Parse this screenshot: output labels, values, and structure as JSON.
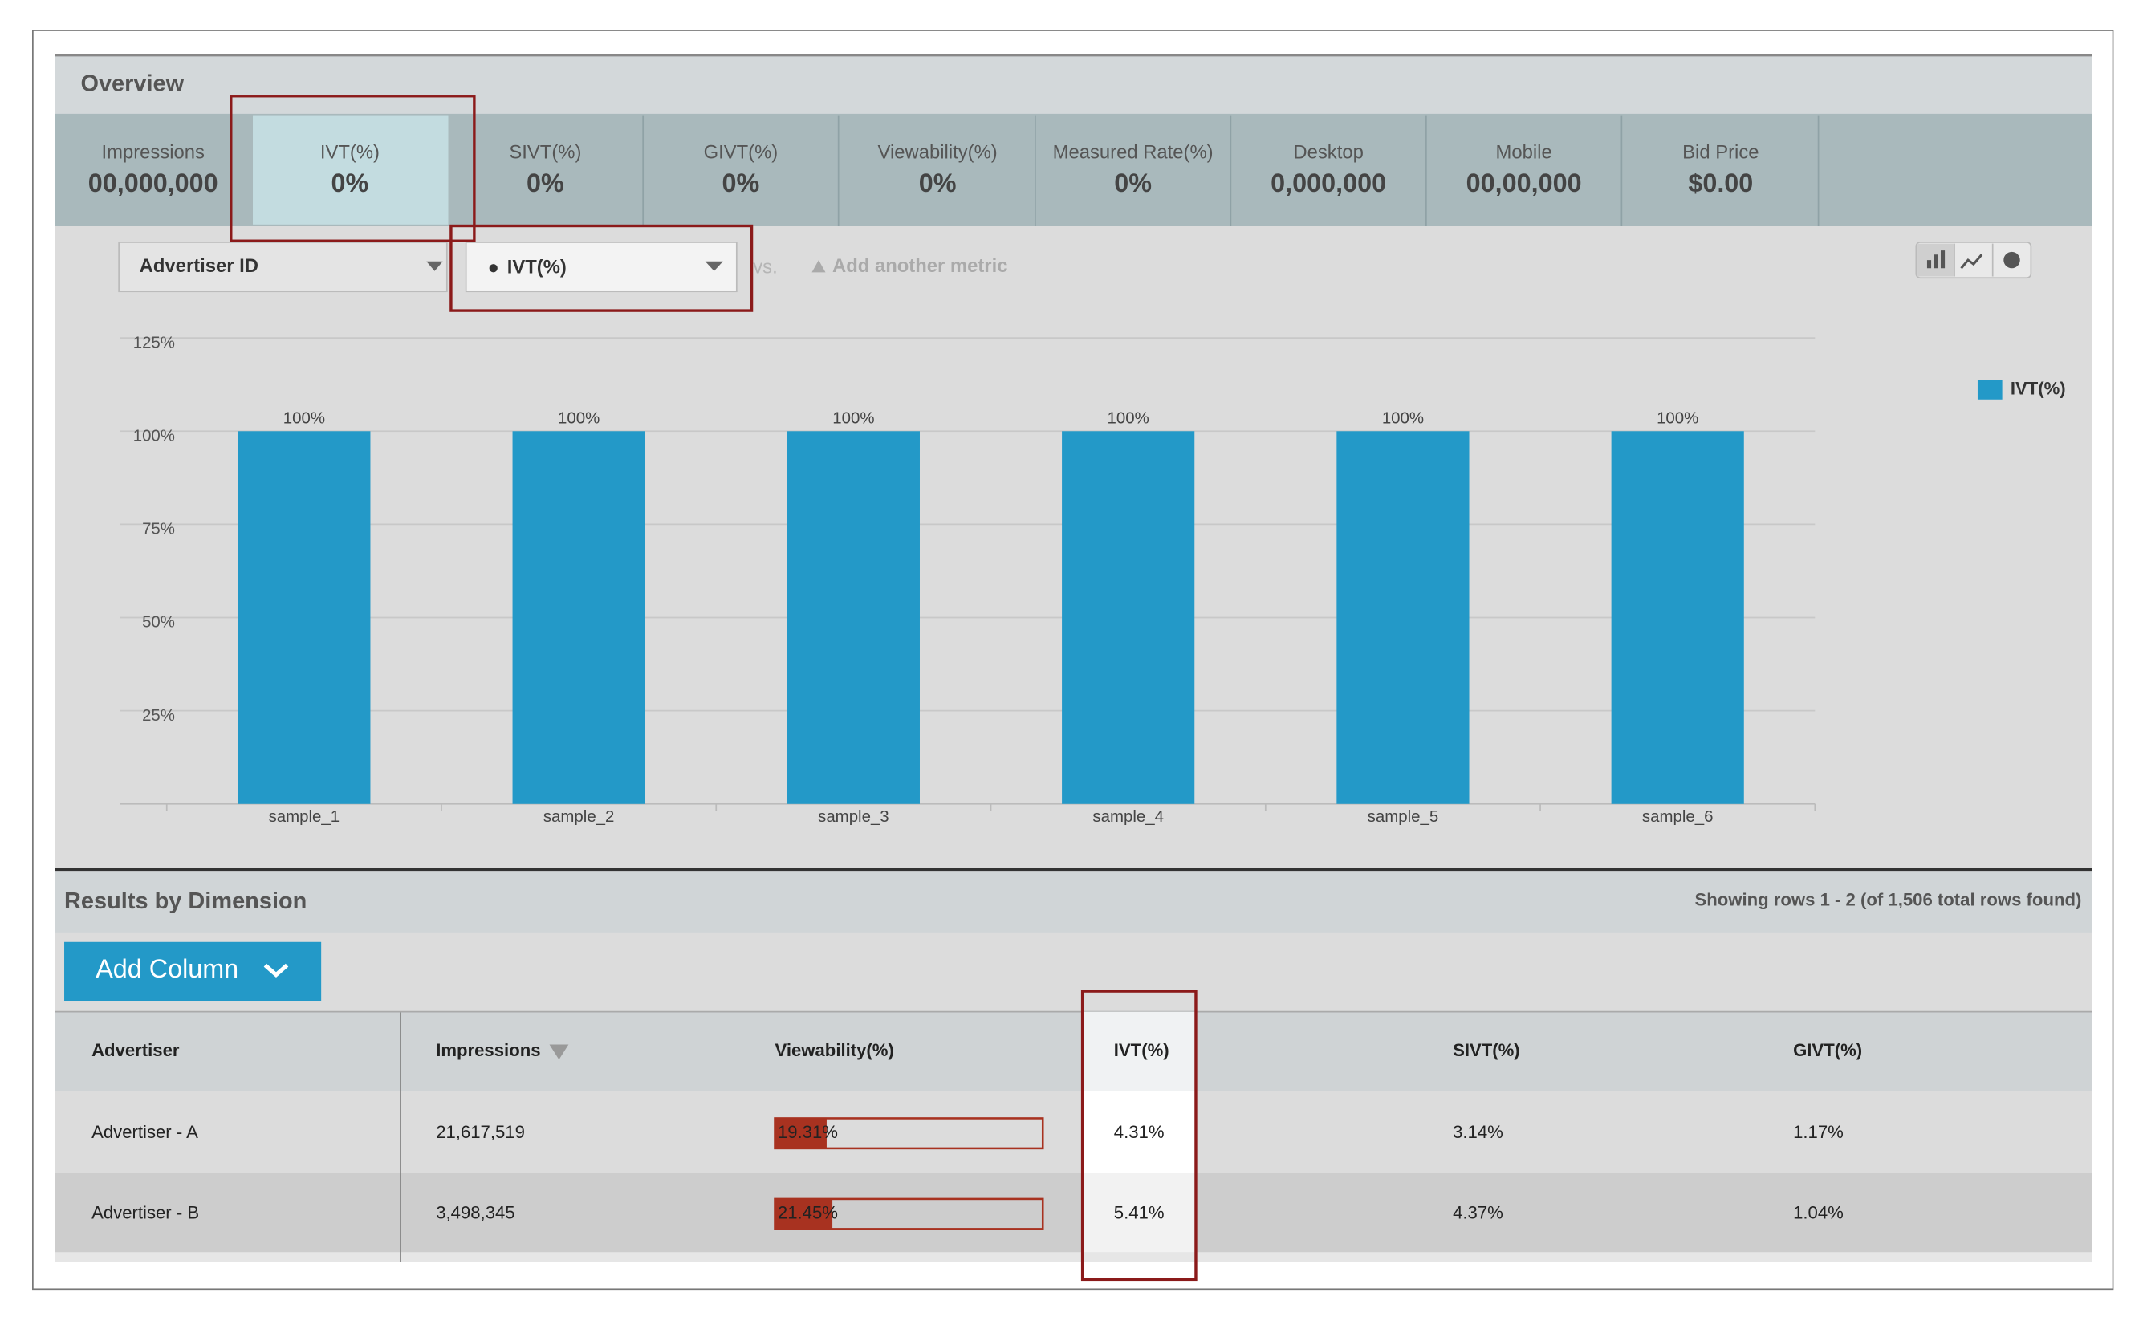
{
  "overview": {
    "title": "Overview",
    "metrics": [
      {
        "label": "Impressions",
        "value": "00,000,000"
      },
      {
        "label": "IVT(%)",
        "value": "0%"
      },
      {
        "label": "SIVT(%)",
        "value": "0%"
      },
      {
        "label": "GIVT(%)",
        "value": "0%"
      },
      {
        "label": "Viewability(%)",
        "value": "0%"
      },
      {
        "label": "Measured Rate(%)",
        "value": "0%"
      },
      {
        "label": "Desktop",
        "value": "0,000,000"
      },
      {
        "label": "Mobile",
        "value": "00,00,000"
      },
      {
        "label": "Bid Price",
        "value": "$0.00"
      }
    ]
  },
  "controls": {
    "dimension": "Advertiser ID",
    "metric": "IVT(%)",
    "vs": "vs.",
    "add_metric": "Add another metric"
  },
  "chart_data": {
    "type": "bar",
    "categories": [
      "sample_1",
      "sample_2",
      "sample_3",
      "sample_4",
      "sample_5",
      "sample_6"
    ],
    "series": [
      {
        "name": "IVT(%)",
        "color": "#2399c8",
        "values": [
          100,
          100,
          100,
          100,
          100,
          100
        ],
        "value_labels": [
          "100%",
          "100%",
          "100%",
          "100%",
          "100%",
          "100%"
        ]
      }
    ],
    "ylim": [
      0,
      125
    ],
    "yticks": [
      {
        "value": 25,
        "label": "25%"
      },
      {
        "value": 50,
        "label": "50%"
      },
      {
        "value": 75,
        "label": "75%"
      },
      {
        "value": 100,
        "label": "100%"
      },
      {
        "value": 125,
        "label": "125%"
      }
    ],
    "grid": true,
    "legend": "right"
  },
  "results": {
    "title": "Results by Dimension",
    "summary": "Showing rows 1 - 2 (of 1,506 total rows found)",
    "add_column": "Add Column"
  },
  "table": {
    "columns": [
      "Advertiser",
      "Impressions",
      "Viewability(%)",
      "IVT(%)",
      "SIVT(%)",
      "GIVT(%)"
    ],
    "rows": [
      [
        "Advertiser - A",
        "21,617,519",
        {
          "value": 19.31,
          "label": "19.31%"
        },
        "4.31%",
        "3.14%",
        "1.17%"
      ],
      [
        "Advertiser - B",
        "3,498,345",
        {
          "value": 21.45,
          "label": "21.45%"
        },
        "5.41%",
        "4.37%",
        "1.04%"
      ]
    ]
  }
}
